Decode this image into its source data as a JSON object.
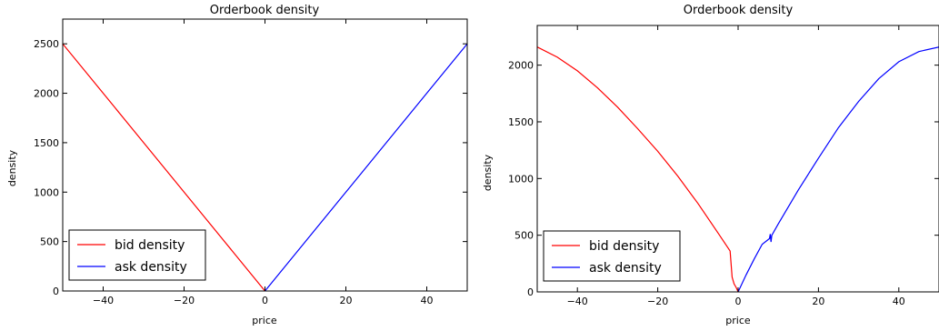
{
  "chart_data": [
    {
      "type": "line",
      "title": "Orderbook density",
      "xlabel": "price",
      "ylabel": "density",
      "xlim": [
        -50,
        50
      ],
      "ylim": [
        0,
        2750
      ],
      "xticks": [
        -40,
        -20,
        0,
        20,
        40
      ],
      "yticks": [
        0,
        500,
        1000,
        1500,
        2000,
        2500
      ],
      "grid": false,
      "legend_position": "lower-left",
      "series": [
        {
          "name": "bid density",
          "color": "#ff0000",
          "x": [
            -50,
            -40,
            -30,
            -20,
            -10,
            0
          ],
          "y": [
            2500,
            2000,
            1500,
            1000,
            500,
            0
          ]
        },
        {
          "name": "ask density",
          "color": "#0000ff",
          "x": [
            0,
            10,
            20,
            30,
            40,
            50
          ],
          "y": [
            0,
            500,
            1000,
            1500,
            2000,
            2500
          ]
        }
      ]
    },
    {
      "type": "line",
      "title": "Orderbook density",
      "xlabel": "price",
      "ylabel": "density",
      "xlim": [
        -50,
        50
      ],
      "ylim": [
        0,
        2350
      ],
      "xticks": [
        -40,
        -20,
        0,
        20,
        40
      ],
      "yticks": [
        0,
        500,
        1000,
        1500,
        2000
      ],
      "grid": false,
      "legend_position": "lower-left",
      "series": [
        {
          "name": "bid density",
          "color": "#ff0000",
          "x": [
            -50,
            -45,
            -40,
            -35,
            -30,
            -25,
            -20,
            -15,
            -10,
            -5,
            -2,
            -1.5,
            -1,
            -0.5,
            0
          ],
          "y": [
            2160,
            2070,
            1950,
            1800,
            1630,
            1440,
            1240,
            1020,
            780,
            520,
            360,
            130,
            70,
            40,
            0
          ]
        },
        {
          "name": "ask density",
          "color": "#0000ff",
          "x": [
            0,
            2,
            4,
            6,
            7.8,
            8.0,
            8.2,
            8.4,
            10,
            15,
            20,
            25,
            30,
            35,
            40,
            45,
            50
          ],
          "y": [
            0,
            150,
            290,
            420,
            470,
            510,
            440,
            500,
            600,
            900,
            1180,
            1450,
            1680,
            1880,
            2030,
            2120,
            2160
          ]
        }
      ]
    }
  ]
}
